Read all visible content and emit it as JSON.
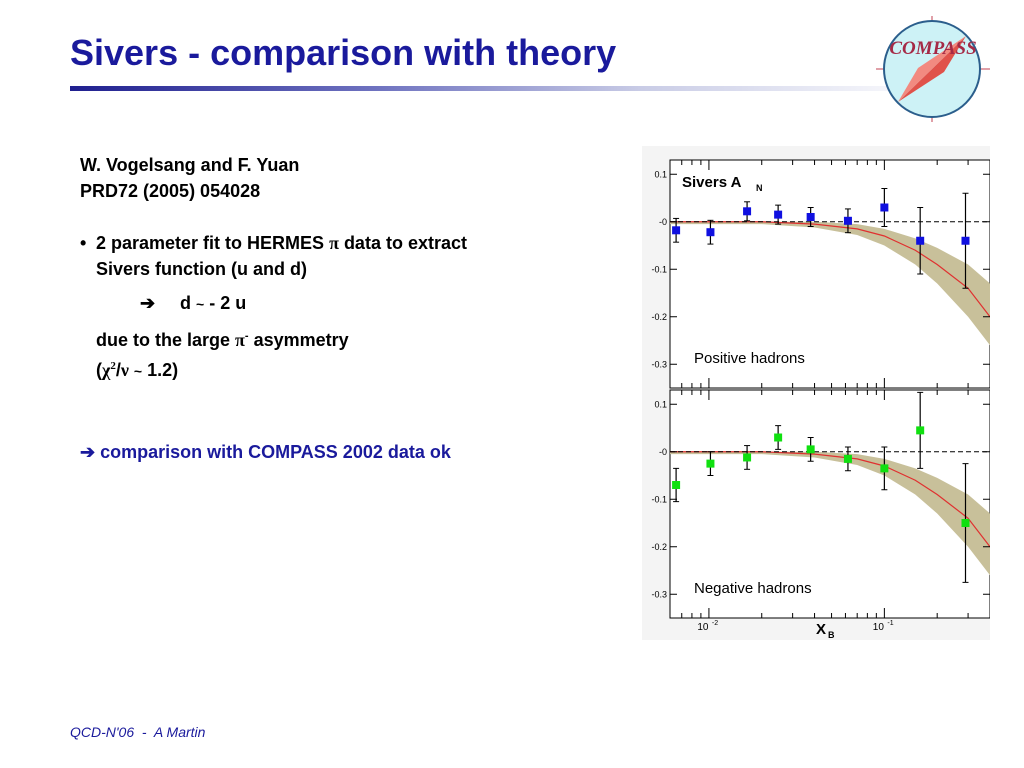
{
  "slide": {
    "title": "Sivers - comparison with theory",
    "footer": "QCD-N'06  -  A Martin",
    "logo_text": "COMPASS"
  },
  "body": {
    "ref_authors": "W. Vogelsang and F. Yuan",
    "ref_journal": "PRD72 (2005) 054028",
    "bullet_symbol": "•",
    "bullet_line1_pre": "2 parameter fit to HERMES ",
    "pi_symbol": "π",
    "bullet_line1_post": " data to extract",
    "bullet_line2": "Sivers function (u and d)",
    "arrow": "➔",
    "relation_d": "d",
    "tilde": "~",
    "relation_rest": "- 2 u",
    "due_pre": "due to the large ",
    "due_sup": "-",
    "due_post": " asymmetry",
    "chi_open": "(",
    "chi_symbol": "χ",
    "chi_sup": "2",
    "chi_slash": "/",
    "nu_symbol": "ν",
    "chi_tail": "1.2)",
    "conclusion_arrow": "➔",
    "conclusion": "comparison with COMPASS 2002 data ok"
  },
  "chart_data": [
    {
      "type": "scatter",
      "title": "Sivers A_N",
      "title_main": "Sivers A",
      "title_sub": "N",
      "label": "Positive hadrons",
      "xscale": "log",
      "xlim": [
        0.006,
        0.4
      ],
      "ylim": [
        -0.35,
        0.13
      ],
      "yticks": [
        0.1,
        0,
        -0.1,
        -0.2,
        -0.3
      ],
      "ytick_labels": [
        "0.1",
        "-0",
        "-0.1",
        "-0.2",
        "-0.3"
      ],
      "marker_color": "#1010e0",
      "curve_color": "#e03030",
      "band_color": "#c8c09a",
      "points": [
        {
          "x": 0.0065,
          "y": -0.018,
          "err": 0.025
        },
        {
          "x": 0.0102,
          "y": -0.022,
          "err": 0.025
        },
        {
          "x": 0.0165,
          "y": 0.022,
          "err": 0.02
        },
        {
          "x": 0.0248,
          "y": 0.015,
          "err": 0.02
        },
        {
          "x": 0.038,
          "y": 0.01,
          "err": 0.02
        },
        {
          "x": 0.062,
          "y": 0.002,
          "err": 0.025
        },
        {
          "x": 0.1,
          "y": 0.03,
          "err": 0.04
        },
        {
          "x": 0.16,
          "y": -0.04,
          "err": 0.07
        },
        {
          "x": 0.29,
          "y": -0.04,
          "err": 0.1
        }
      ],
      "curve": [
        [
          0.006,
          0.0
        ],
        [
          0.02,
          0.0
        ],
        [
          0.04,
          -0.005
        ],
        [
          0.07,
          -0.015
        ],
        [
          0.1,
          -0.03
        ],
        [
          0.15,
          -0.06
        ],
        [
          0.2,
          -0.09
        ],
        [
          0.3,
          -0.14
        ],
        [
          0.4,
          -0.2
        ]
      ],
      "band_upper": [
        [
          0.006,
          0.0
        ],
        [
          0.02,
          0.0
        ],
        [
          0.04,
          0.0
        ],
        [
          0.07,
          -0.005
        ],
        [
          0.1,
          -0.015
        ],
        [
          0.15,
          -0.035
        ],
        [
          0.2,
          -0.055
        ],
        [
          0.3,
          -0.09
        ],
        [
          0.4,
          -0.13
        ]
      ],
      "band_lower": [
        [
          0.006,
          -0.005
        ],
        [
          0.02,
          -0.005
        ],
        [
          0.04,
          -0.012
        ],
        [
          0.07,
          -0.028
        ],
        [
          0.1,
          -0.05
        ],
        [
          0.15,
          -0.09
        ],
        [
          0.2,
          -0.13
        ],
        [
          0.3,
          -0.2
        ],
        [
          0.4,
          -0.26
        ]
      ]
    },
    {
      "type": "scatter",
      "label": "Negative hadrons",
      "xlabel": "X_B",
      "xlabel_main": "X",
      "xlabel_sub": "B",
      "xscale": "log",
      "xlim": [
        0.006,
        0.4
      ],
      "ylim": [
        -0.35,
        0.13
      ],
      "yticks": [
        0.1,
        0,
        -0.1,
        -0.2,
        -0.3
      ],
      "ytick_labels": [
        "0.1",
        "-0",
        "-0.1",
        "-0.2",
        "-0.3"
      ],
      "xtick_labels": [
        {
          "x": 0.01,
          "label": "10",
          "exp": "-2"
        },
        {
          "x": 0.1,
          "label": "10",
          "exp": "-1"
        }
      ],
      "marker_color": "#10e010",
      "curve_color": "#e03030",
      "band_color": "#c8c09a",
      "points": [
        {
          "x": 0.0065,
          "y": -0.07,
          "err": 0.035
        },
        {
          "x": 0.0102,
          "y": -0.025,
          "err": 0.025
        },
        {
          "x": 0.0165,
          "y": -0.012,
          "err": 0.025
        },
        {
          "x": 0.0248,
          "y": 0.03,
          "err": 0.025
        },
        {
          "x": 0.038,
          "y": 0.005,
          "err": 0.025
        },
        {
          "x": 0.062,
          "y": -0.015,
          "err": 0.025
        },
        {
          "x": 0.1,
          "y": -0.035,
          "err": 0.045
        },
        {
          "x": 0.16,
          "y": 0.045,
          "err": 0.08
        },
        {
          "x": 0.29,
          "y": -0.15,
          "err": 0.125
        }
      ],
      "curve": [
        [
          0.006,
          0.0
        ],
        [
          0.02,
          0.0
        ],
        [
          0.04,
          -0.005
        ],
        [
          0.07,
          -0.015
        ],
        [
          0.1,
          -0.03
        ],
        [
          0.15,
          -0.06
        ],
        [
          0.2,
          -0.09
        ],
        [
          0.3,
          -0.14
        ],
        [
          0.4,
          -0.2
        ]
      ],
      "band_upper": [
        [
          0.006,
          0.0
        ],
        [
          0.02,
          0.0
        ],
        [
          0.04,
          0.0
        ],
        [
          0.07,
          -0.005
        ],
        [
          0.1,
          -0.015
        ],
        [
          0.15,
          -0.035
        ],
        [
          0.2,
          -0.055
        ],
        [
          0.3,
          -0.09
        ],
        [
          0.4,
          -0.13
        ]
      ],
      "band_lower": [
        [
          0.006,
          -0.005
        ],
        [
          0.02,
          -0.005
        ],
        [
          0.04,
          -0.012
        ],
        [
          0.07,
          -0.028
        ],
        [
          0.1,
          -0.05
        ],
        [
          0.15,
          -0.09
        ],
        [
          0.2,
          -0.13
        ],
        [
          0.3,
          -0.2
        ],
        [
          0.4,
          -0.26
        ]
      ]
    }
  ]
}
